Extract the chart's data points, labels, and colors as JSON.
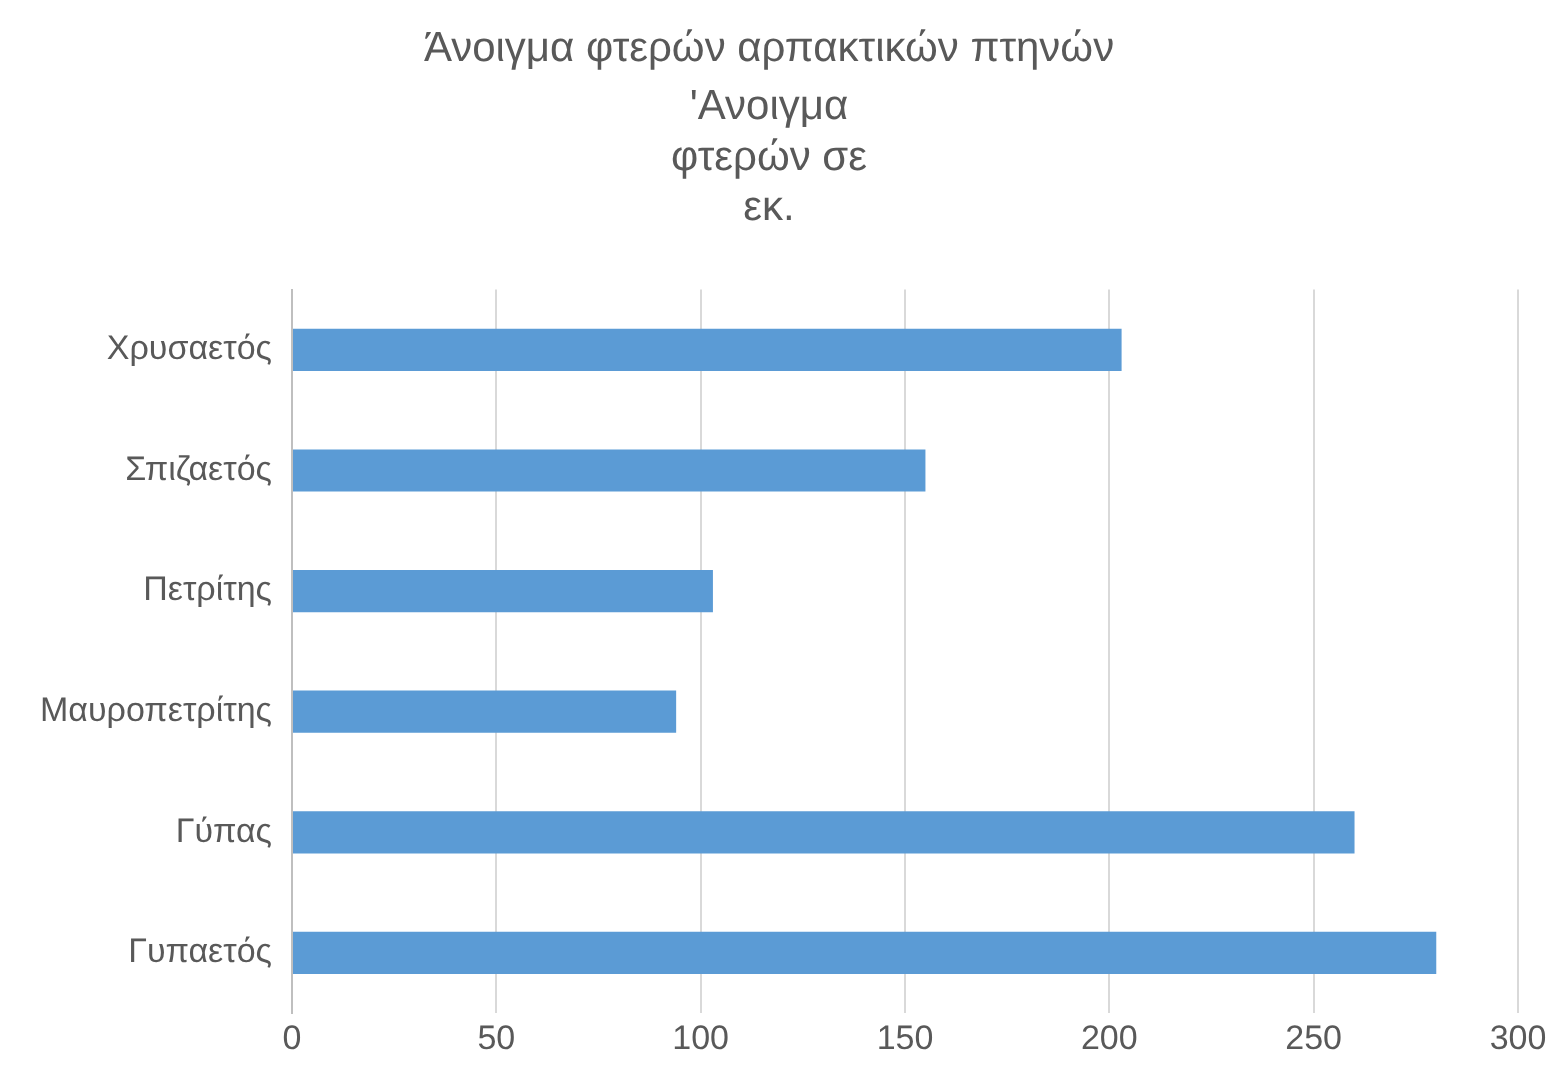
{
  "chart_data": {
    "type": "bar",
    "orientation": "horizontal",
    "title": "Άνοιγμα φτερών αρπακτικών πτηνών",
    "subtitle": "'Ανοιγμα φτερών σε εκ.",
    "categories": [
      "Χρυσαετός",
      "Σπιζαετός",
      "Πετρίτης",
      "Μαυροπετρίτης",
      "Γύπας",
      "Γυπαετός"
    ],
    "values": [
      203,
      155,
      103,
      94,
      260,
      280
    ],
    "color": "#5b9bd5",
    "xlim": [
      0,
      300
    ],
    "xticks": [
      0,
      50,
      100,
      150,
      200,
      250,
      300
    ],
    "grid": "x"
  }
}
